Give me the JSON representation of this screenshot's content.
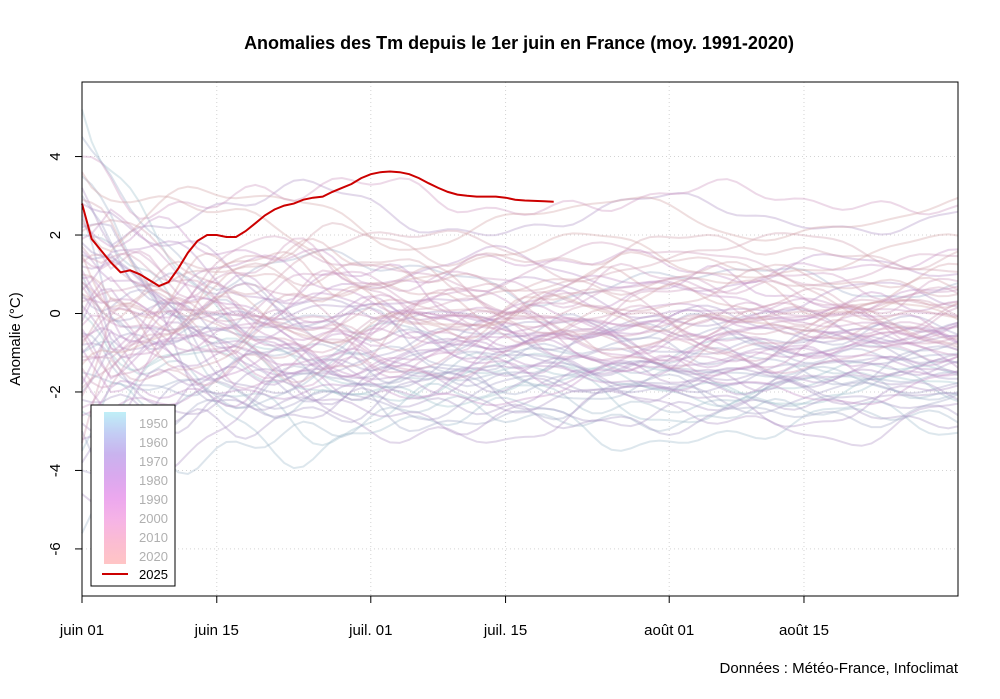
{
  "chart_data": {
    "type": "line",
    "title": "Anomalies des Tm depuis le 1er juin en France (moy. 1991-2020)",
    "ylabel": "Anomalie (°C)",
    "xlabel": "",
    "credit": "Données : Météo-France, Infoclimat",
    "x_range_days": [
      0,
      91
    ],
    "ylim": [
      -7.2,
      5.9
    ],
    "x_ticks": [
      {
        "day": 0,
        "label": "juin 01"
      },
      {
        "day": 14,
        "label": "juin 15"
      },
      {
        "day": 30,
        "label": "juil. 01"
      },
      {
        "day": 44,
        "label": "juil. 15"
      },
      {
        "day": 61,
        "label": "août 01"
      },
      {
        "day": 75,
        "label": "août 15"
      }
    ],
    "y_ticks": [
      -6,
      -4,
      -2,
      0,
      2,
      4
    ],
    "grid": true,
    "legend": {
      "placement": "bottom-left",
      "gradient_labels": [
        "1950",
        "1960",
        "1970",
        "1980",
        "1990",
        "2000",
        "2010",
        "2020"
      ],
      "highlight_label": "2025",
      "colors": [
        "#bfeff7",
        "#c3cdf4",
        "#c9b3ee",
        "#d9a9ee",
        "#eca8ee",
        "#f6b3e6",
        "#fbbcd3",
        "#ffc5c5"
      ]
    },
    "highlight_series": {
      "name": "2025",
      "color": "#cc0000",
      "x": [
        0,
        1,
        2,
        3,
        4,
        5,
        6,
        7,
        8,
        9,
        10,
        11,
        12,
        13,
        14,
        15,
        16,
        17,
        18,
        19,
        20,
        21,
        22,
        23,
        24,
        25,
        26,
        27,
        28,
        29,
        30,
        31,
        32,
        33,
        34,
        35,
        36,
        37,
        38,
        39,
        40,
        41,
        42,
        43,
        44,
        45,
        46,
        47,
        48,
        49
      ],
      "values": [
        2.8,
        1.9,
        1.6,
        1.3,
        1.05,
        1.1,
        1.0,
        0.85,
        0.7,
        0.8,
        1.15,
        1.55,
        1.85,
        2.0,
        2.0,
        1.95,
        1.95,
        2.1,
        2.3,
        2.5,
        2.65,
        2.75,
        2.8,
        2.9,
        2.95,
        2.98,
        3.1,
        3.2,
        3.3,
        3.45,
        3.55,
        3.6,
        3.62,
        3.6,
        3.55,
        3.45,
        3.32,
        3.2,
        3.1,
        3.03,
        3.0,
        2.98,
        2.98,
        2.98,
        2.95,
        2.9,
        2.88,
        2.87,
        2.86,
        2.85
      ]
    },
    "background_series": [
      {
        "year": 1950,
        "start": 0.0,
        "end": -1.9
      },
      {
        "year": 1951,
        "start": -2.5,
        "end": -1.5
      },
      {
        "year": 1952,
        "start": 5.2,
        "end": -1.8
      },
      {
        "year": 1953,
        "start": -3.5,
        "end": -2.2
      },
      {
        "year": 1954,
        "start": -1.0,
        "end": -2.9
      },
      {
        "year": 1955,
        "start": 2.0,
        "end": -2.0
      },
      {
        "year": 1956,
        "start": -5.6,
        "end": -2.6
      },
      {
        "year": 1957,
        "start": 3.5,
        "end": -1.0
      },
      {
        "year": 1958,
        "start": -1.5,
        "end": -1.7
      },
      {
        "year": 1959,
        "start": 4.5,
        "end": 0.8
      },
      {
        "year": 1960,
        "start": -0.5,
        "end": -1.4
      },
      {
        "year": 1961,
        "start": 2.5,
        "end": -0.8
      },
      {
        "year": 1962,
        "start": -3.0,
        "end": -2.3
      },
      {
        "year": 1963,
        "start": 1.0,
        "end": -1.2
      },
      {
        "year": 1964,
        "start": 3.0,
        "end": -0.5
      },
      {
        "year": 1965,
        "start": -4.0,
        "end": -2.0
      },
      {
        "year": 1966,
        "start": 0.5,
        "end": -1.3
      },
      {
        "year": 1967,
        "start": -2.0,
        "end": -0.6
      },
      {
        "year": 1968,
        "start": 1.5,
        "end": -1.6
      },
      {
        "year": 1969,
        "start": -1.0,
        "end": -1.1
      },
      {
        "year": 1970,
        "start": 2.2,
        "end": -2.4
      },
      {
        "year": 1971,
        "start": -3.8,
        "end": -1.8
      },
      {
        "year": 1972,
        "start": -2.2,
        "end": -2.5
      },
      {
        "year": 1973,
        "start": 1.8,
        "end": -0.3
      },
      {
        "year": 1974,
        "start": -0.8,
        "end": -1.9
      },
      {
        "year": 1975,
        "start": 0.8,
        "end": -0.4
      },
      {
        "year": 1976,
        "start": 3.2,
        "end": 2.5
      },
      {
        "year": 1977,
        "start": -4.6,
        "end": -2.7
      },
      {
        "year": 1978,
        "start": -2.8,
        "end": -2.2
      },
      {
        "year": 1979,
        "start": 0.2,
        "end": -1.5
      },
      {
        "year": 1980,
        "start": -3.2,
        "end": -1.6
      },
      {
        "year": 1981,
        "start": 1.2,
        "end": -0.9
      },
      {
        "year": 1982,
        "start": 2.8,
        "end": 0.3
      },
      {
        "year": 1983,
        "start": 0.6,
        "end": 1.0
      },
      {
        "year": 1984,
        "start": -1.8,
        "end": -1.4
      },
      {
        "year": 1985,
        "start": -0.2,
        "end": -0.8
      },
      {
        "year": 1986,
        "start": 1.6,
        "end": -0.2
      },
      {
        "year": 1987,
        "start": -2.6,
        "end": -1.3
      },
      {
        "year": 1988,
        "start": -0.6,
        "end": -1.0
      },
      {
        "year": 1989,
        "start": 0.9,
        "end": 0.5
      },
      {
        "year": 1990,
        "start": -0.4,
        "end": -0.3
      },
      {
        "year": 1991,
        "start": -1.6,
        "end": -1.8
      },
      {
        "year": 1992,
        "start": 1.1,
        "end": 0.4
      },
      {
        "year": 1993,
        "start": -0.9,
        "end": -0.7
      },
      {
        "year": 1994,
        "start": 2.3,
        "end": 1.2
      },
      {
        "year": 1995,
        "start": -1.2,
        "end": -0.9
      },
      {
        "year": 1996,
        "start": 0.4,
        "end": -0.5
      },
      {
        "year": 1997,
        "start": -2.4,
        "end": -1.1
      },
      {
        "year": 1998,
        "start": 1.9,
        "end": -0.1
      },
      {
        "year": 1999,
        "start": 0.0,
        "end": -0.6
      },
      {
        "year": 2000,
        "start": -0.3,
        "end": -0.4
      },
      {
        "year": 2001,
        "start": 1.4,
        "end": 0.7
      },
      {
        "year": 2002,
        "start": -0.7,
        "end": -0.2
      },
      {
        "year": 2003,
        "start": 4.0,
        "end": 2.9
      },
      {
        "year": 2004,
        "start": 0.7,
        "end": 0.1
      },
      {
        "year": 2005,
        "start": 2.6,
        "end": 0.6
      },
      {
        "year": 2006,
        "start": -1.1,
        "end": 1.3
      },
      {
        "year": 2007,
        "start": -0.5,
        "end": -0.9
      },
      {
        "year": 2008,
        "start": -1.4,
        "end": -0.5
      },
      {
        "year": 2009,
        "start": 0.3,
        "end": 0.2
      },
      {
        "year": 2010,
        "start": -1.9,
        "end": 0.0
      },
      {
        "year": 2011,
        "start": 1.7,
        "end": -0.6
      },
      {
        "year": 2012,
        "start": -2.1,
        "end": 0.1
      },
      {
        "year": 2013,
        "start": -3.3,
        "end": -0.7
      },
      {
        "year": 2014,
        "start": 1.3,
        "end": -0.3
      },
      {
        "year": 2015,
        "start": 2.1,
        "end": 1.5
      },
      {
        "year": 2016,
        "start": -0.8,
        "end": 0.3
      },
      {
        "year": 2017,
        "start": 2.9,
        "end": 0.8
      },
      {
        "year": 2018,
        "start": 1.0,
        "end": 1.6
      },
      {
        "year": 2019,
        "start": 0.5,
        "end": 1.1
      },
      {
        "year": 2020,
        "start": 0.8,
        "end": 0.6
      },
      {
        "year": 2021,
        "start": 1.5,
        "end": 0.2
      },
      {
        "year": 2022,
        "start": 2.4,
        "end": 2.4
      },
      {
        "year": 2023,
        "start": 3.6,
        "end": 1.4
      },
      {
        "year": 2024,
        "start": -1.3,
        "end": -0.1
      }
    ]
  }
}
